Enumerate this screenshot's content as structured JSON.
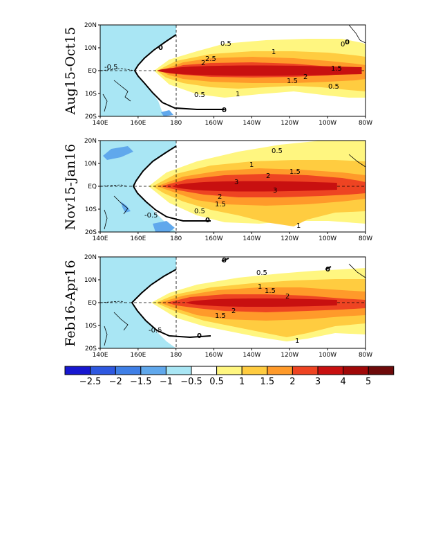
{
  "panels": [
    {
      "title": "Aug15-Oct15",
      "contour_labels": [
        "0",
        "0",
        "-0.5",
        "0.5",
        "1",
        "2",
        "2.5",
        "1.5",
        "2",
        "1.5",
        "0.5",
        "1",
        "0.5",
        "0",
        "0"
      ],
      "core": {
        "lon_west": 170,
        "lon_east": 278,
        "lat_halfwidth": 2.5
      }
    },
    {
      "title": "Nov15-Jan16",
      "contour_labels": [
        "0.5",
        "1",
        "2",
        "1.5",
        "3",
        "3",
        "2",
        "1.5",
        "0.5",
        "-0.5",
        "0",
        "1"
      ],
      "core": {
        "lon_west": 178,
        "lon_east": 265,
        "lat_halfwidth": 2.5
      }
    },
    {
      "title": "Feb16-Apr16",
      "contour_labels": [
        "0",
        "0",
        "0.5",
        "1",
        "1.5",
        "2",
        "2",
        "1.5",
        "-0.5",
        "0",
        "1"
      ],
      "core": {
        "lon_west": 185,
        "lon_east": 265,
        "lat_halfwidth": 2
      }
    }
  ],
  "axes": {
    "lon_ticks": [
      "140E",
      "160E",
      "180",
      "160W",
      "140W",
      "120W",
      "100W",
      "80W"
    ],
    "lat_ticks": [
      "20N",
      "10N",
      "EQ",
      "10S",
      "20S"
    ]
  },
  "colorbar": {
    "labels": [
      "-2.5",
      "-2",
      "-1.5",
      "-1",
      "-0.5",
      "0.5",
      "1",
      "1.5",
      "2",
      "3",
      "4",
      "5"
    ],
    "colors": [
      "#1717d0",
      "#2e58e0",
      "#3f7fe6",
      "#60a8ec",
      "#a9e6f4",
      "#ffffff",
      "#fff680",
      "#ffcc40",
      "#ff9a2a",
      "#ee4422",
      "#c81010",
      "#a00808",
      "#6e0a0a"
    ]
  }
}
